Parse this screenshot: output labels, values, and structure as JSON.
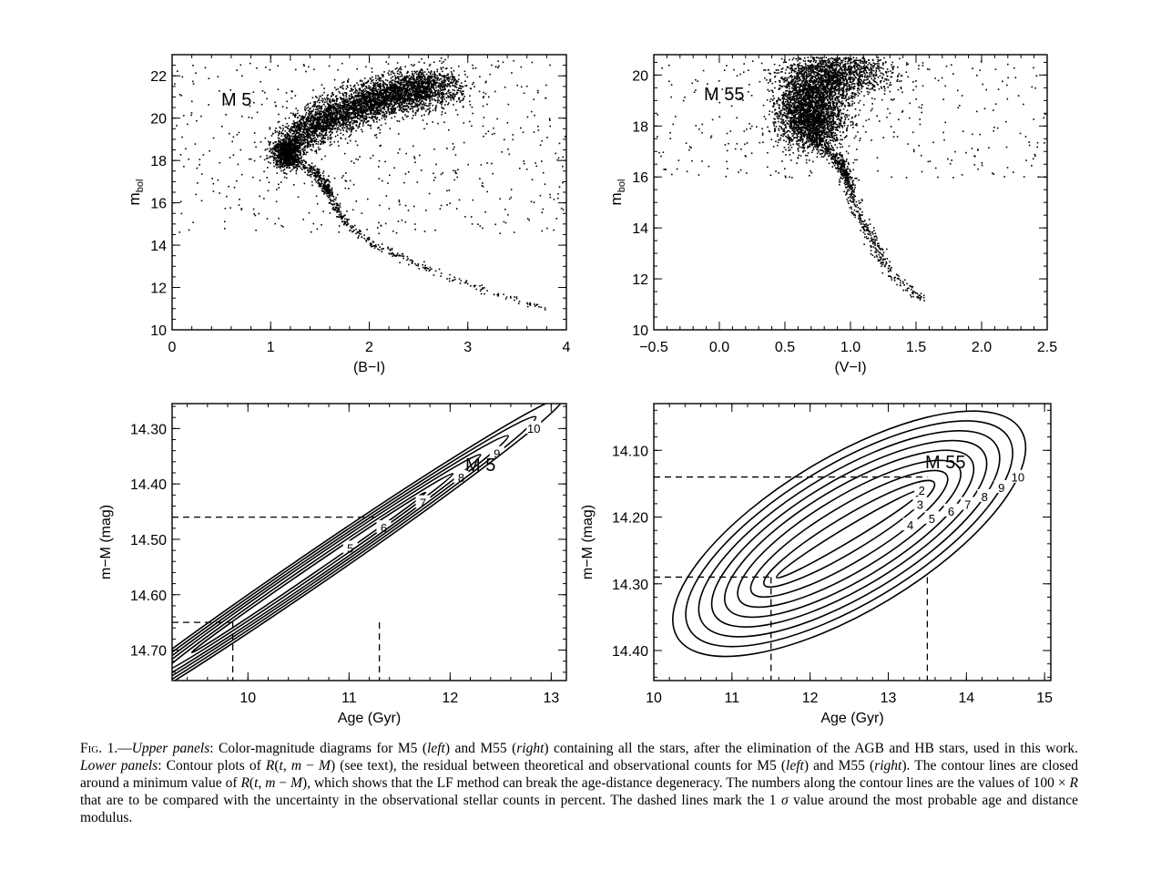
{
  "chart_data": [
    {
      "type": "scatter",
      "panel": "upper-left",
      "label": "M 5",
      "xlabel": "(B−I)",
      "ylabel": "m_bol",
      "xlim": [
        0,
        4
      ],
      "ylim": [
        23,
        10
      ],
      "y_inverted": true,
      "xticks": [
        "0",
        "1",
        "2",
        "3",
        "4"
      ],
      "yticks": [
        "10",
        "12",
        "14",
        "16",
        "18",
        "20",
        "22"
      ],
      "features": {
        "turnoff": {
          "x": 1.15,
          "y": 18.4
        },
        "subgiant_branch": [
          [
            1.15,
            18.1
          ],
          [
            1.45,
            17.5
          ],
          [
            1.55,
            16.8
          ]
        ],
        "red_giant_branch": [
          [
            1.55,
            16.8
          ],
          [
            1.75,
            15.0
          ],
          [
            2.1,
            13.9
          ],
          [
            2.6,
            12.9
          ],
          [
            3.2,
            11.8
          ],
          [
            3.8,
            11.0
          ]
        ],
        "main_sequence": [
          [
            1.15,
            18.8
          ],
          [
            1.6,
            20.1
          ],
          [
            2.2,
            21.1
          ],
          [
            2.7,
            21.6
          ]
        ]
      }
    },
    {
      "type": "scatter",
      "panel": "upper-right",
      "label": "M 55",
      "xlabel": "(V−I)",
      "ylabel": "m_bol",
      "xlim": [
        -0.5,
        2.5
      ],
      "ylim": [
        20.8,
        10
      ],
      "y_inverted": true,
      "xticks": [
        "−0.5",
        "0.0",
        "0.5",
        "1.0",
        "1.5",
        "2.0",
        "2.5"
      ],
      "yticks": [
        "10",
        "12",
        "14",
        "16",
        "18",
        "20"
      ],
      "features": {
        "turnoff": {
          "x": 0.7,
          "y": 18.2
        },
        "subgiant_branch": [
          [
            0.7,
            17.6
          ],
          [
            0.88,
            16.8
          ],
          [
            0.95,
            16.2
          ]
        ],
        "red_giant_branch": [
          [
            0.95,
            16.2
          ],
          [
            1.05,
            14.6
          ],
          [
            1.2,
            13.2
          ],
          [
            1.3,
            12.2
          ],
          [
            1.55,
            11.2
          ]
        ],
        "main_sequence": [
          [
            0.6,
            18.6
          ],
          [
            0.7,
            19.4
          ],
          [
            0.85,
            20.0
          ],
          [
            1.0,
            20.3
          ]
        ]
      }
    },
    {
      "type": "contour",
      "panel": "lower-left",
      "label": "M 5",
      "xlabel": "Age (Gyr)",
      "ylabel": "m−M (mag)",
      "xlim": [
        9.25,
        13.15
      ],
      "ylim": [
        14.255,
        14.755
      ],
      "xticks": [
        "10",
        "11",
        "12",
        "13"
      ],
      "yticks": [
        "14.30",
        "14.40",
        "14.50",
        "14.60",
        "14.70"
      ],
      "center": {
        "x": 10.6,
        "y": 14.56
      },
      "major_axis": {
        "x": 13.0,
        "y": 14.26
      },
      "levels": [
        {
          "level": "5",
          "semi_minor": 0.1
        },
        {
          "level": "6",
          "semi_minor": 0.18
        },
        {
          "level": "7",
          "semi_minor": 0.26
        },
        {
          "level": "8",
          "semi_minor": 0.33
        },
        {
          "level": "9",
          "semi_minor": 0.4
        },
        {
          "level": "10",
          "semi_minor": 0.47
        }
      ],
      "dashed_age": [
        9.85,
        11.3
      ],
      "dashed_mM": [
        14.46,
        14.65
      ]
    },
    {
      "type": "contour",
      "panel": "lower-right",
      "label": "M 55",
      "xlabel": "Age (Gyr)",
      "ylabel": "m−M (mag)",
      "xlim": [
        10,
        15.08
      ],
      "ylim": [
        14.03,
        14.445
      ],
      "xticks": [
        "10",
        "11",
        "12",
        "13",
        "14",
        "15"
      ],
      "yticks": [
        "14.10",
        "14.20",
        "14.30",
        "14.40"
      ],
      "center": {
        "x": 12.5,
        "y": 14.225
      },
      "major_axis": {
        "x": 14.7,
        "y": 14.07
      },
      "levels": [
        {
          "level": "2",
          "semi_minor": 0.08
        },
        {
          "level": "3",
          "semi_minor": 0.2
        },
        {
          "level": "4",
          "semi_minor": 0.32
        },
        {
          "level": "5",
          "semi_minor": 0.43
        },
        {
          "level": "6",
          "semi_minor": 0.53
        },
        {
          "level": "7",
          "semi_minor": 0.62
        },
        {
          "level": "8",
          "semi_minor": 0.71
        },
        {
          "level": "9",
          "semi_minor": 0.8
        },
        {
          "level": "10",
          "semi_minor": 0.89
        }
      ],
      "dashed_age": [
        11.5,
        13.5
      ],
      "dashed_mM": [
        14.14,
        14.29
      ]
    }
  ],
  "caption": {
    "fig": "Fig.",
    "num": " 1.—",
    "html": "<i>Upper panels</i>: Color-magnitude diagrams for M5 (<i>left</i>) and M55 (<i>right</i>) containing all the stars, after the elimination of the AGB and HB stars, used in this work. <i>Lower panels</i>: Contour plots of <i>R</i>(<i>t</i>, <i>m</i> − <i>M</i>) (see text), the residual between theoretical and observational counts for M5 (<i>left</i>) and M55 (<i>right</i>). The contour lines are closed around a minimum value of <i>R</i>(<i>t</i>, <i>m</i> − <i>M</i>), which shows that the LF method can break the age-distance degeneracy. The numbers along the contour lines are the values of 100 × <i>R</i> that are to be compared with the uncertainty in the observational stellar counts in percent. The dashed lines mark the 1 <i>σ</i> value around the most probable age and distance modulus."
  }
}
